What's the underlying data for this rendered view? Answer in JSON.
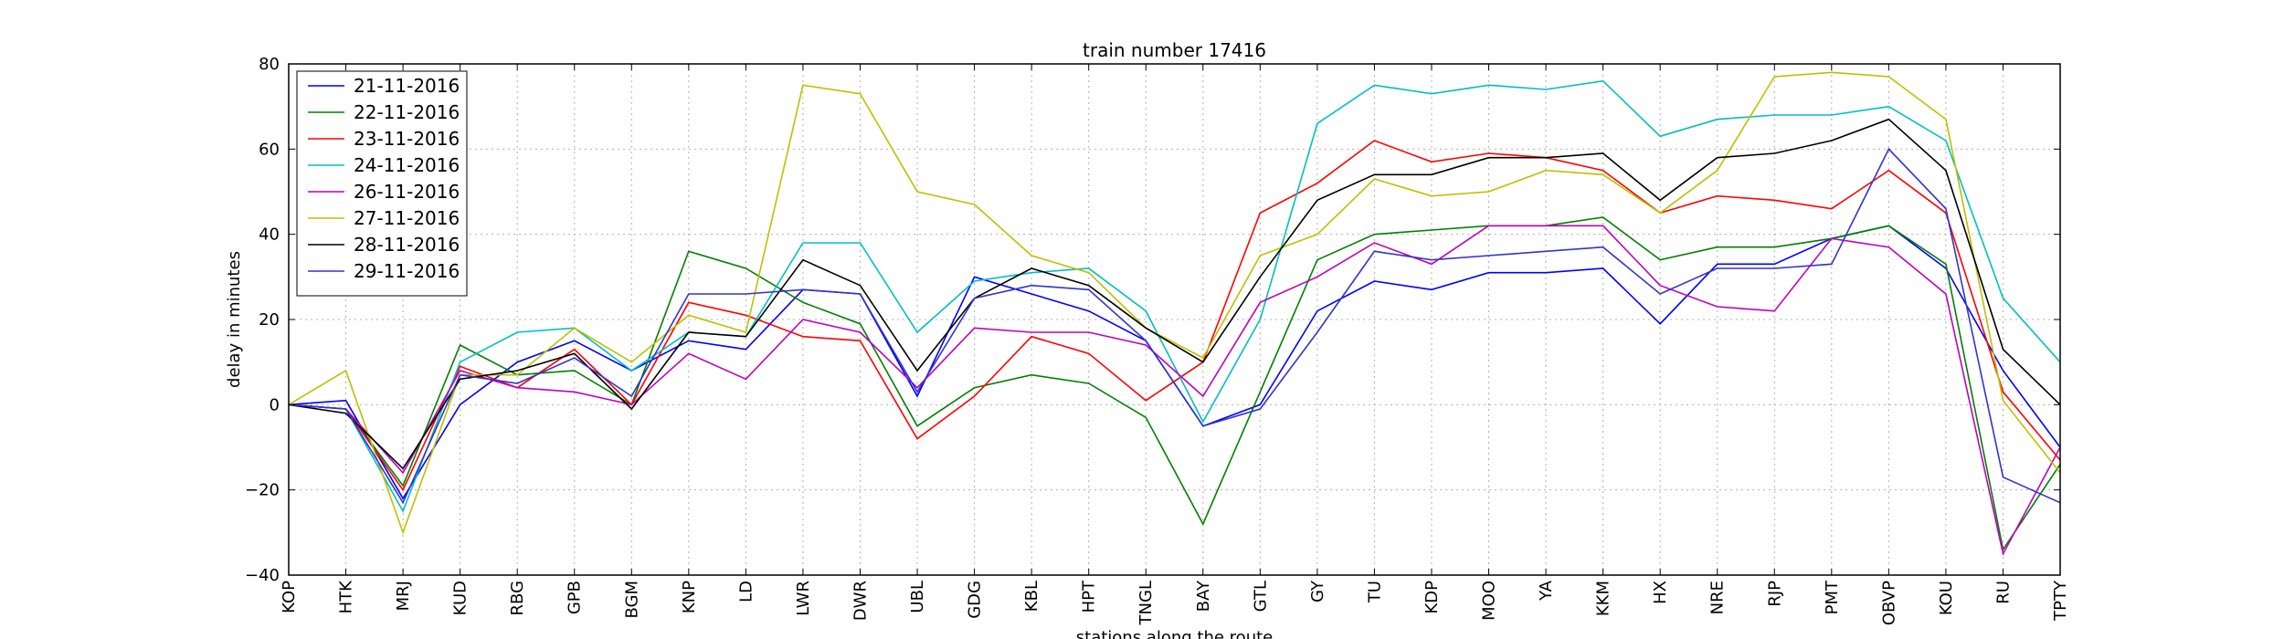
{
  "chart_data": {
    "type": "line",
    "title": "train number 17416",
    "xlabel": "stations along the route",
    "ylabel": "delay in minutes",
    "ylim": [
      -40,
      80
    ],
    "yticks": [
      -40,
      -20,
      0,
      20,
      40,
      60,
      80
    ],
    "grid": true,
    "legend_position": "top-left",
    "categories": [
      "KOP",
      "HTK",
      "MRJ",
      "KUD",
      "RBG",
      "GPB",
      "BGM",
      "KNP",
      "LD",
      "LWR",
      "DWR",
      "UBL",
      "GDG",
      "KBL",
      "HPT",
      "TNGL",
      "BAY",
      "GTL",
      "GY",
      "TU",
      "KDP",
      "MOO",
      "YA",
      "KKM",
      "HX",
      "NRE",
      "RJP",
      "PMT",
      "OBVP",
      "KOU",
      "RU",
      "TPTY"
    ],
    "series": [
      {
        "name": "21-11-2016",
        "color": "#0000ff",
        "values": [
          0,
          1,
          -22,
          0,
          10,
          15,
          8,
          15,
          13,
          27,
          26,
          2,
          30,
          26,
          22,
          15,
          -5,
          0,
          22,
          29,
          27,
          31,
          31,
          32,
          19,
          33,
          33,
          39,
          42,
          32,
          8,
          -10
        ]
      },
      {
        "name": "22-11-2016",
        "color": "#008000",
        "values": [
          0,
          -1,
          -19,
          14,
          7,
          8,
          0,
          36,
          32,
          24,
          19,
          -5,
          4,
          7,
          5,
          -3,
          -28,
          3,
          34,
          40,
          41,
          42,
          42,
          44,
          34,
          37,
          37,
          39,
          42,
          33,
          -34,
          -14
        ]
      },
      {
        "name": "23-11-2016",
        "color": "#ff0000",
        "values": [
          0,
          -1,
          -20,
          9,
          4,
          13,
          0,
          24,
          21,
          16,
          15,
          -8,
          2,
          16,
          12,
          1,
          10,
          45,
          52,
          62,
          57,
          59,
          58,
          55,
          45,
          49,
          48,
          46,
          55,
          45,
          3,
          -13
        ]
      },
      {
        "name": "24-11-2016",
        "color": "#00bfbf",
        "values": [
          0,
          -1,
          -25,
          10,
          17,
          18,
          8,
          17,
          16,
          38,
          38,
          17,
          29,
          31,
          32,
          22,
          -4,
          20,
          66,
          75,
          73,
          75,
          74,
          76,
          63,
          67,
          68,
          68,
          70,
          62,
          25,
          10
        ]
      },
      {
        "name": "26-11-2016",
        "color": "#bf00bf",
        "values": [
          0,
          -1,
          -16,
          8,
          4,
          3,
          0,
          12,
          6,
          20,
          17,
          4,
          18,
          17,
          17,
          14,
          2,
          24,
          30,
          38,
          33,
          42,
          42,
          42,
          28,
          23,
          22,
          39,
          37,
          26,
          -35,
          -10
        ]
      },
      {
        "name": "27-11-2016",
        "color": "#bfbf00",
        "values": [
          0,
          8,
          -30,
          7,
          7,
          18,
          10,
          21,
          17,
          75,
          73,
          50,
          47,
          35,
          31,
          18,
          11,
          35,
          40,
          53,
          49,
          50,
          55,
          54,
          45,
          55,
          77,
          78,
          77,
          67,
          1,
          -16
        ]
      },
      {
        "name": "28-11-2016",
        "color": "#000000",
        "values": [
          0,
          -2,
          -15,
          6,
          8,
          12,
          -1,
          17,
          16,
          34,
          28,
          8,
          25,
          32,
          28,
          18,
          10,
          30,
          48,
          54,
          54,
          58,
          58,
          59,
          48,
          58,
          59,
          62,
          67,
          55,
          13,
          0
        ]
      },
      {
        "name": "29-11-2016",
        "color": "#3333cc",
        "values": [
          0,
          -1,
          -23,
          7,
          5,
          11,
          2,
          26,
          26,
          27,
          26,
          3,
          25,
          28,
          27,
          15,
          -5,
          -1,
          17,
          36,
          34,
          35,
          36,
          37,
          26,
          32,
          32,
          33,
          60,
          46,
          -17,
          -23
        ]
      }
    ]
  }
}
